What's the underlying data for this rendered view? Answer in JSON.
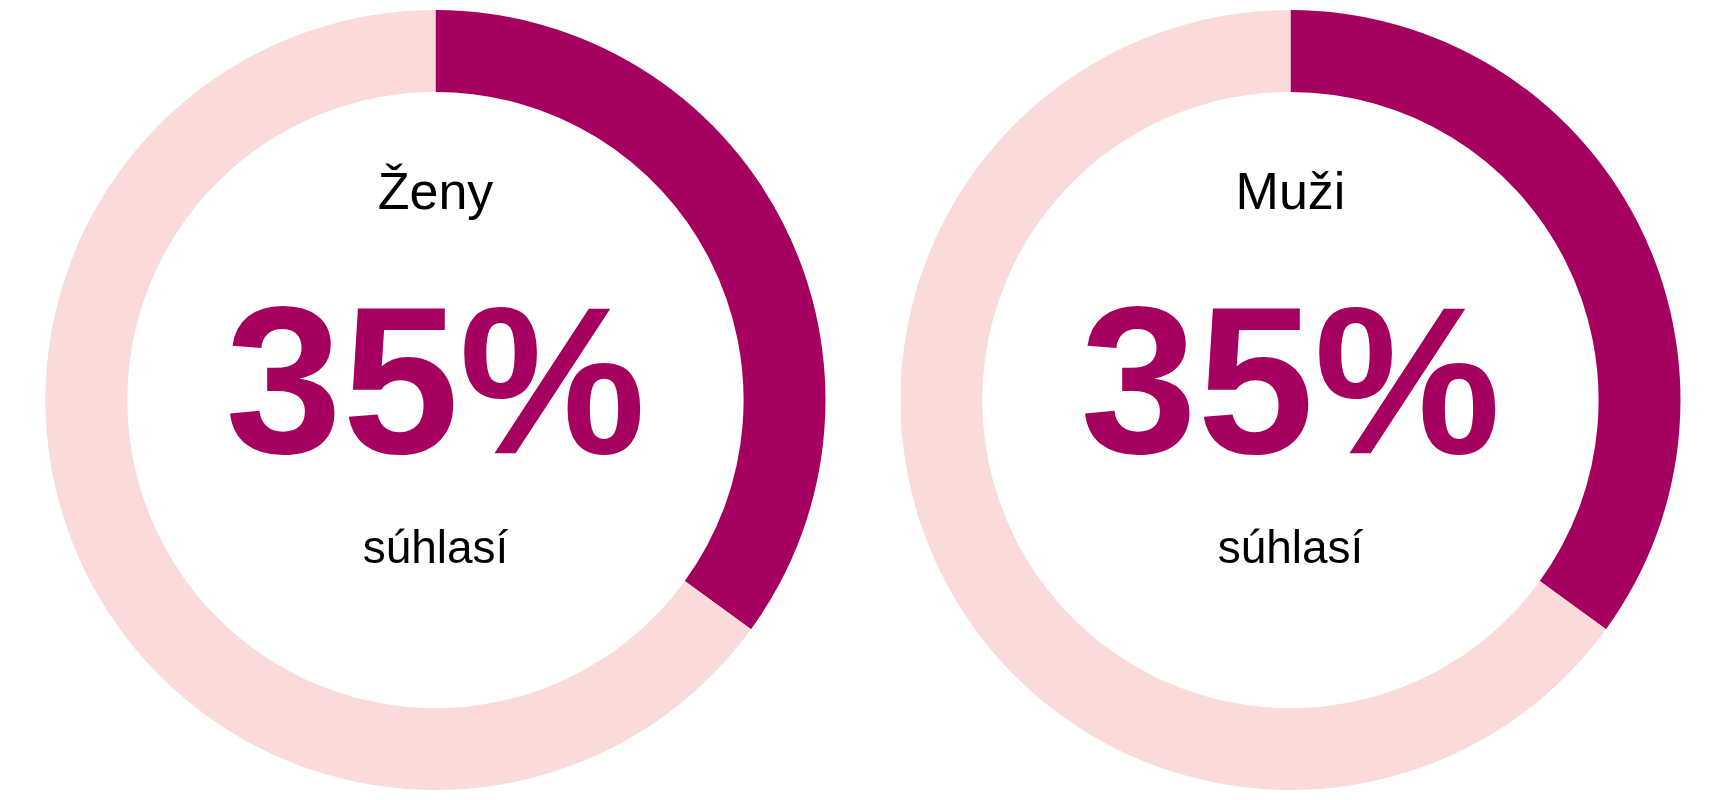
{
  "chart_data": [
    {
      "type": "donut",
      "title": "Ženy",
      "categories": [
        null,
        null
      ],
      "values": [
        35,
        65
      ],
      "colors": [
        "#a50060",
        "#fbdada"
      ],
      "value_labels": [
        "35%",
        null
      ],
      "annotations": [
        "súhlasí"
      ]
    },
    {
      "type": "donut",
      "title": "Muži",
      "categories": [
        null,
        null
      ],
      "values": [
        35,
        65
      ],
      "colors": [
        "#a50060",
        "#fbdada"
      ],
      "value_labels": [
        "35%",
        null
      ],
      "annotations": [
        "súhlasí"
      ]
    }
  ]
}
